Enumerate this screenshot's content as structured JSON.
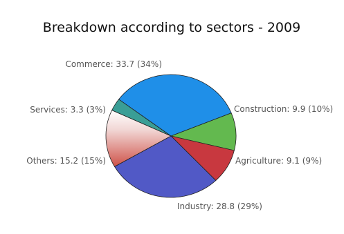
{
  "chart_data": {
    "type": "pie",
    "title": "Breakdown according to sectors - 2009",
    "slices": [
      {
        "name": "Construction",
        "value": 9.9,
        "percent": 10,
        "label": "Construction: 9.9 (10%)",
        "color": "#63b94f"
      },
      {
        "name": "Agriculture",
        "value": 9.1,
        "percent": 9,
        "label": "Agriculture: 9.1 (9%)",
        "color": "#c8383f"
      },
      {
        "name": "Industry",
        "value": 28.8,
        "percent": 29,
        "label": "Industry: 28.8 (29%)",
        "color": "#5159c6"
      },
      {
        "name": "Others",
        "value": 15.2,
        "percent": 15,
        "label": "Others: 15.2 (15%)",
        "color": "#d4615c"
      },
      {
        "name": "Services",
        "value": 3.3,
        "percent": 3,
        "label": "Services: 3.3 (3%)",
        "color": "#3a9e96"
      },
      {
        "name": "Commerce",
        "value": 33.7,
        "percent": 34,
        "label": "Commerce: 33.7 (34%)",
        "color": "#1f8fe8"
      }
    ]
  }
}
